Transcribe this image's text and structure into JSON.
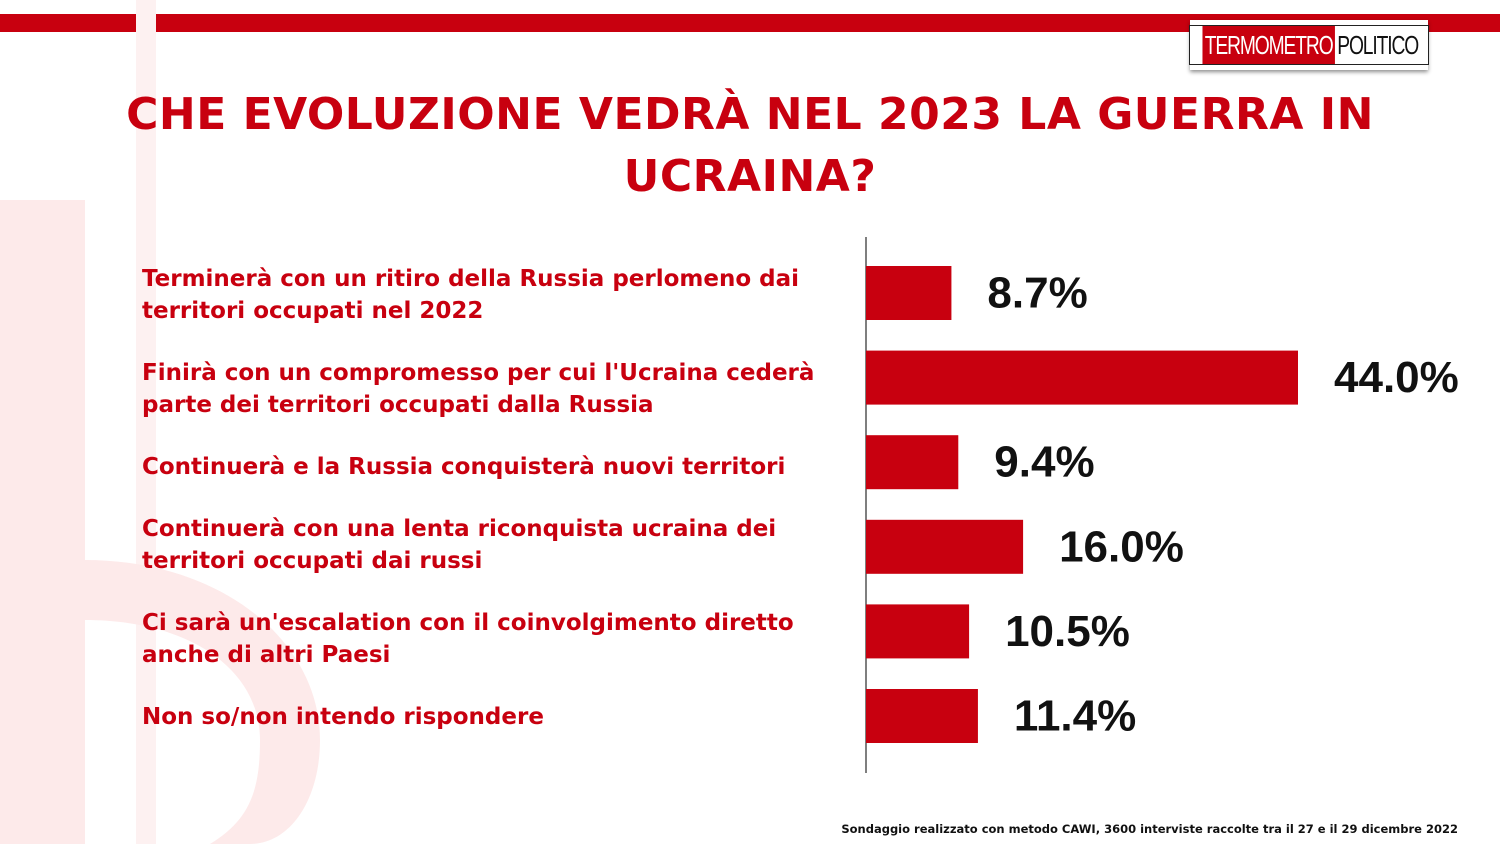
{
  "header": {
    "logo_part1": "TERMOMETRO",
    "logo_part2": "POLITICO"
  },
  "colors": {
    "accent": "#c8000f",
    "watermark": "#fdeaea"
  },
  "chart_data": {
    "type": "bar",
    "orientation": "horizontal",
    "title": "CHE EVOLUZIONE VEDRÀ NEL 2023 LA GUERRA IN UCRAINA?",
    "categories": [
      "Terminerà con un ritiro della Russia perlomeno dai territori occupati nel 2022",
      "Finirà con un compromesso per cui l'Ucraina cederà parte dei territori occupati dalla Russia",
      "Continuerà e la Russia conquisterà  nuovi territori",
      "Continuerà con una lenta riconquista ucraina dei territori occupati dai russi",
      "Ci sarà un'escalation con il coinvolgimento diretto anche di altri Paesi",
      "Non so/non intendo rispondere"
    ],
    "values": [
      8.7,
      44.0,
      9.4,
      16.0,
      10.5,
      11.4
    ],
    "value_labels": [
      "8.7%",
      "44.0%",
      "9.4%",
      "16.0%",
      "10.5%",
      "11.4%"
    ],
    "unit": "%",
    "xlim": [
      0,
      44
    ],
    "grid": false,
    "legend": "none"
  },
  "footnote": "Sondaggio realizzato con metodo CAWI, 3600 interviste raccolte tra il 27 e il 29 dicembre 2022"
}
